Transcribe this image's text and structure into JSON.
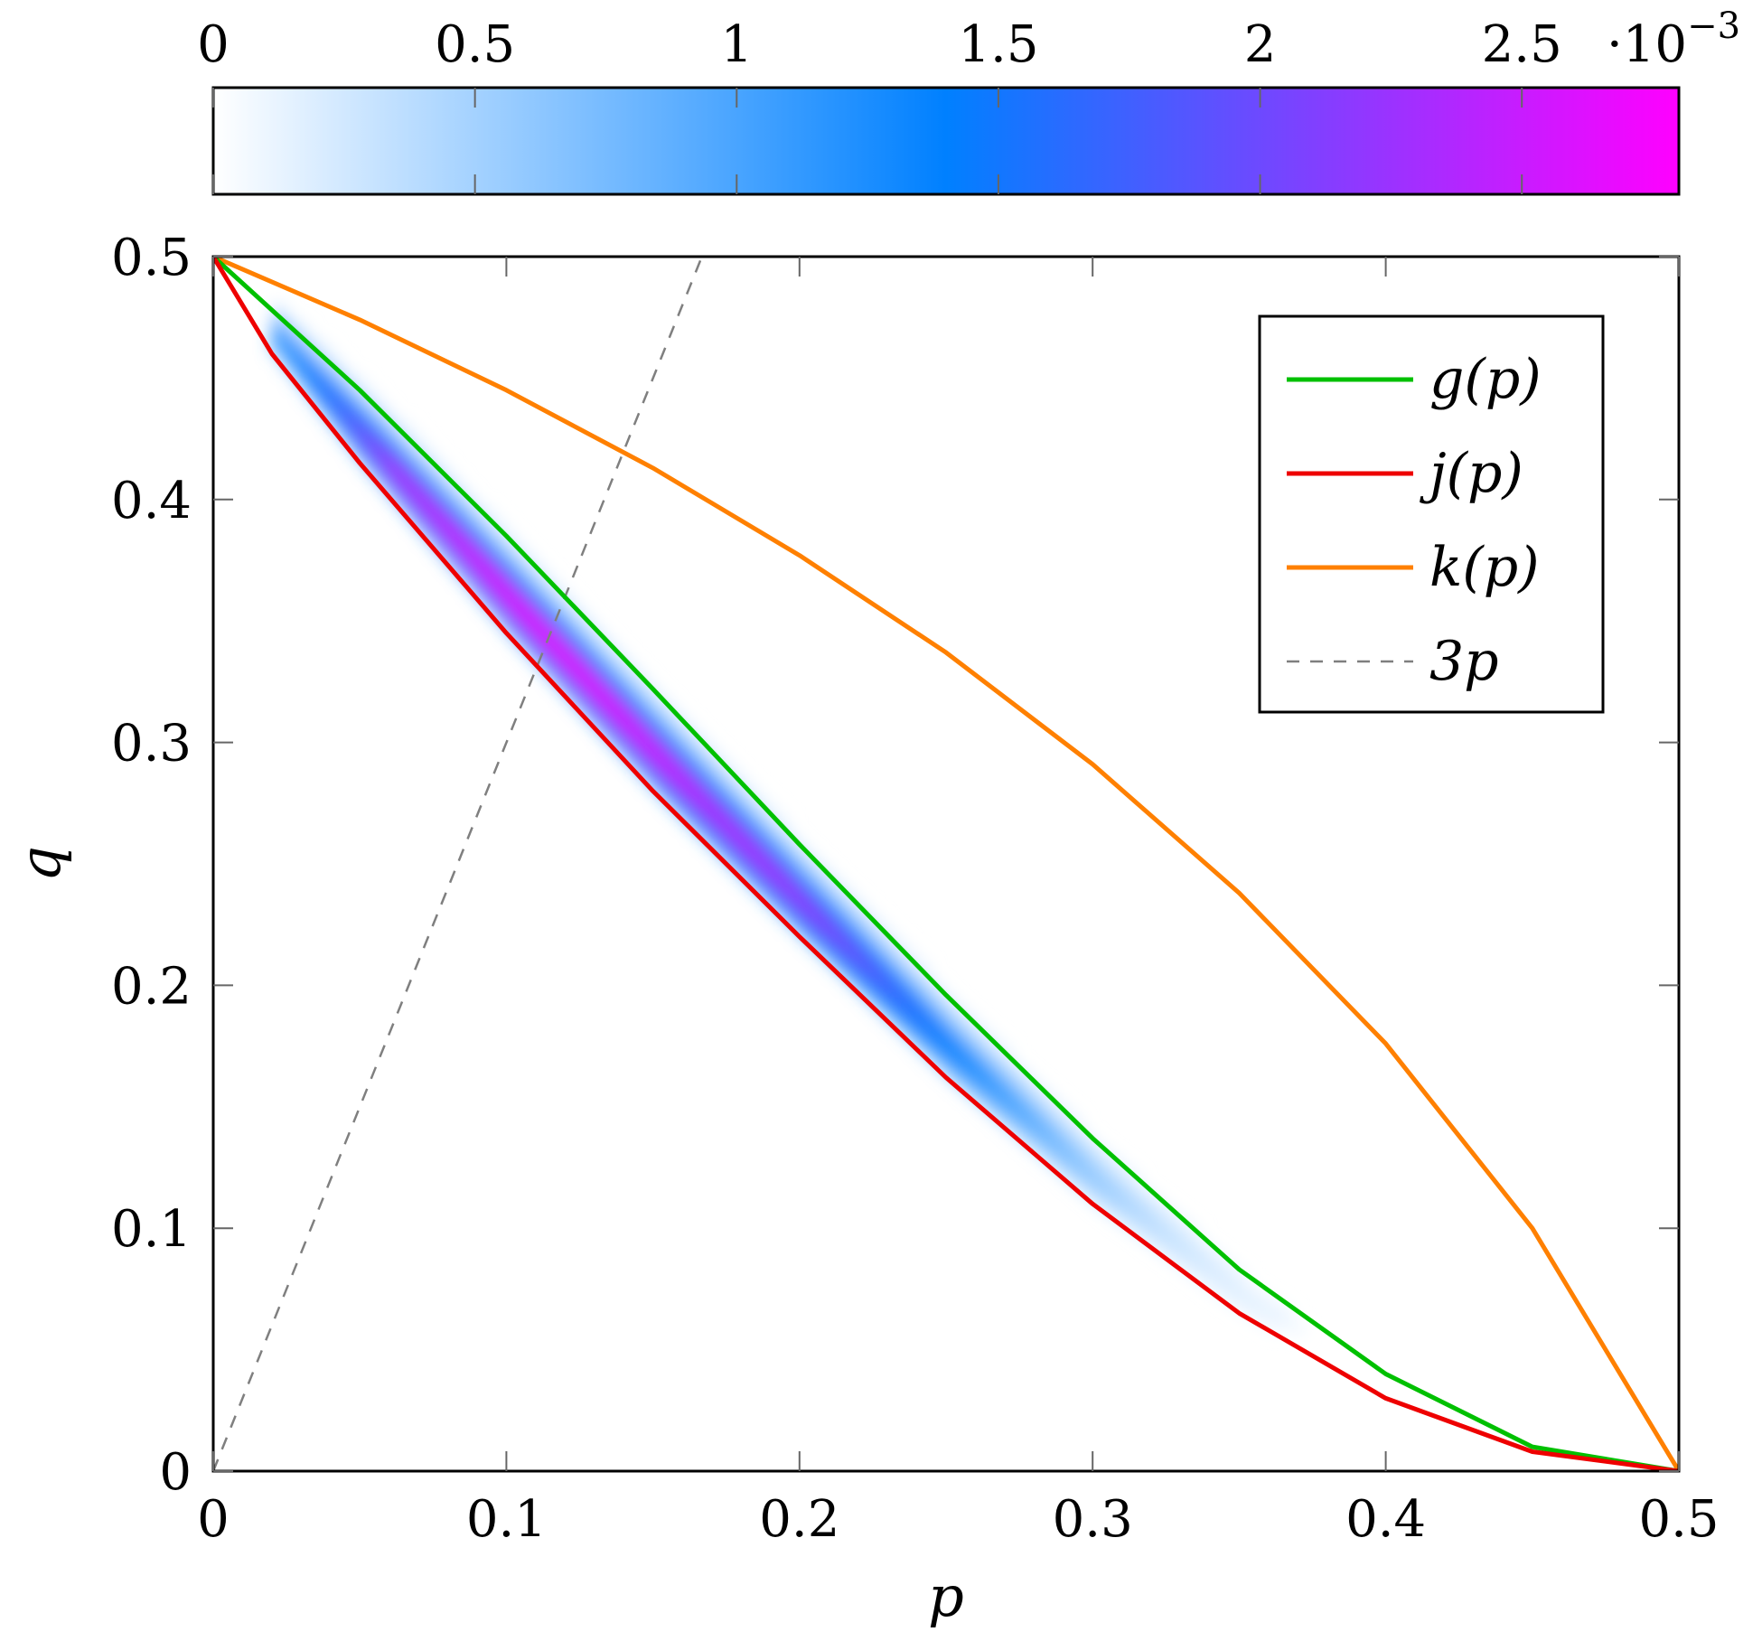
{
  "chart_data": {
    "type": "heatmap",
    "xlabel": "p",
    "ylabel": "q",
    "xlim": [
      0,
      0.5
    ],
    "ylim": [
      0,
      0.5
    ],
    "xticks": [
      "0",
      "0.1",
      "0.2",
      "0.3",
      "0.4",
      "0.5"
    ],
    "yticks": [
      "0",
      "0.1",
      "0.2",
      "0.3",
      "0.4",
      "0.5"
    ],
    "legend_position": "top-right",
    "colorbar": {
      "position": "top",
      "range": [
        0,
        0.0028
      ],
      "ticks": [
        "0",
        "0.5",
        "1",
        "1.5",
        "2",
        "2.5"
      ],
      "multiplier": "·10",
      "exponent": "−3",
      "colors": [
        "#ffffff",
        "#0080ff",
        "#ff00ff"
      ]
    },
    "density_peak_value": 0.0027,
    "series": [
      {
        "name": "g(p)",
        "color": "#00c000",
        "dash": "solid",
        "x": [
          0,
          0.05,
          0.1,
          0.15,
          0.2,
          0.25,
          0.3,
          0.35,
          0.4,
          0.45,
          0.5
        ],
        "y": [
          0.5,
          0.445,
          0.385,
          0.322,
          0.258,
          0.196,
          0.137,
          0.083,
          0.04,
          0.01,
          0
        ]
      },
      {
        "name": "j(p)",
        "color": "#ee0000",
        "dash": "solid",
        "x": [
          0,
          0.02,
          0.05,
          0.1,
          0.15,
          0.2,
          0.25,
          0.3,
          0.35,
          0.4,
          0.45,
          0.5
        ],
        "y": [
          0.5,
          0.46,
          0.415,
          0.345,
          0.28,
          0.22,
          0.162,
          0.11,
          0.065,
          0.03,
          0.008,
          0
        ]
      },
      {
        "name": "k(p)",
        "color": "#ff8000",
        "dash": "solid",
        "x": [
          0,
          0.05,
          0.1,
          0.15,
          0.2,
          0.25,
          0.3,
          0.35,
          0.4,
          0.45,
          0.5
        ],
        "y": [
          0.5,
          0.474,
          0.445,
          0.413,
          0.377,
          0.337,
          0.291,
          0.238,
          0.176,
          0.1,
          0
        ]
      },
      {
        "name": "3p",
        "color": "#7f7f7f",
        "dash": "dashed",
        "x": [
          0,
          0.1667
        ],
        "y": [
          0,
          0.5
        ]
      }
    ]
  }
}
